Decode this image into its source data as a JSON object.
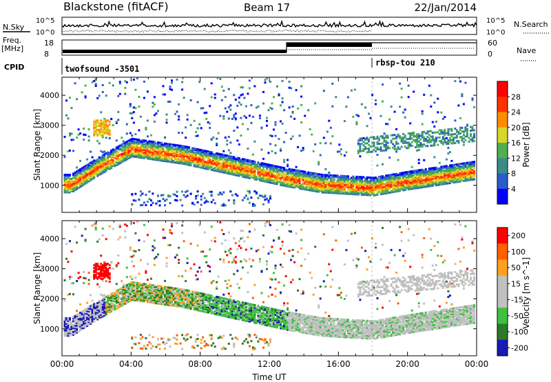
{
  "header": {
    "station": "Blackstone (fitACF)",
    "beam": "Beam 17",
    "date": "22/Jan/2014"
  },
  "top_panels": {
    "nsky_label": "N.Sky",
    "nsearch_label": "N.Search",
    "noise_ticks": [
      "10^5",
      "10^0"
    ],
    "freq_label": "Freq.",
    "freq_unit": "[MHz]",
    "freq_ticks": [
      "18",
      "8"
    ],
    "nave_label": "Nave",
    "nave_ticks": [
      "60",
      "0"
    ],
    "cpid_label": "CPID",
    "cpid_segments": [
      {
        "name": "twofsound -3501",
        "start_hour": 0
      },
      {
        "name": "rbsp-tou 210",
        "start_hour": 18
      }
    ]
  },
  "chart_data": [
    {
      "type": "heatmap",
      "title": "Power",
      "ylabel": "Slant Range [km]",
      "xlabel": "",
      "xlim": [
        0,
        24
      ],
      "ylim": [
        100,
        4600
      ],
      "yticks": [
        1000,
        2000,
        3000,
        4000
      ],
      "colorbar": {
        "label": "Power [dB]",
        "ticks": [
          4,
          8,
          12,
          16,
          20,
          24,
          28
        ],
        "range": [
          0,
          30
        ],
        "colors": [
          "#0000ff",
          "#2a5ccc",
          "#3d8a8a",
          "#50b050",
          "#d7d72a",
          "#ff8c00",
          "#ff3300",
          "#ff0000"
        ]
      },
      "features": [
        {
          "desc": "main band",
          "points": [
            [
              0.5,
              1050
            ],
            [
              2,
              1600
            ],
            [
              4,
              2250
            ],
            [
              7,
              2000
            ],
            [
              9,
              1750
            ],
            [
              11,
              1500
            ],
            [
              13,
              1250
            ],
            [
              15,
              1050
            ],
            [
              18,
              950
            ],
            [
              20,
              1150
            ],
            [
              24,
              1500
            ]
          ]
        }
      ]
    },
    {
      "type": "heatmap",
      "title": "Velocity",
      "ylabel": "Slant Range [km]",
      "xlabel": "Time UT",
      "xlim": [
        0,
        24
      ],
      "ylim": [
        100,
        4600
      ],
      "yticks": [
        1000,
        2000,
        3000,
        4000
      ],
      "xticks": [
        "00:00",
        "04:00",
        "08:00",
        "12:00",
        "16:00",
        "20:00",
        "00:00"
      ],
      "colorbar": {
        "label": "Velocity [m s^-1]",
        "ticks": [
          200,
          100,
          50,
          15,
          -15,
          -50,
          -100,
          -200
        ],
        "colors": [
          "#1a1ab5",
          "#2a7a2a",
          "#40c040",
          "#c0c0c0",
          "#c0c0c0",
          "#ffa020",
          "#ff6000",
          "#ff0000"
        ]
      }
    }
  ]
}
